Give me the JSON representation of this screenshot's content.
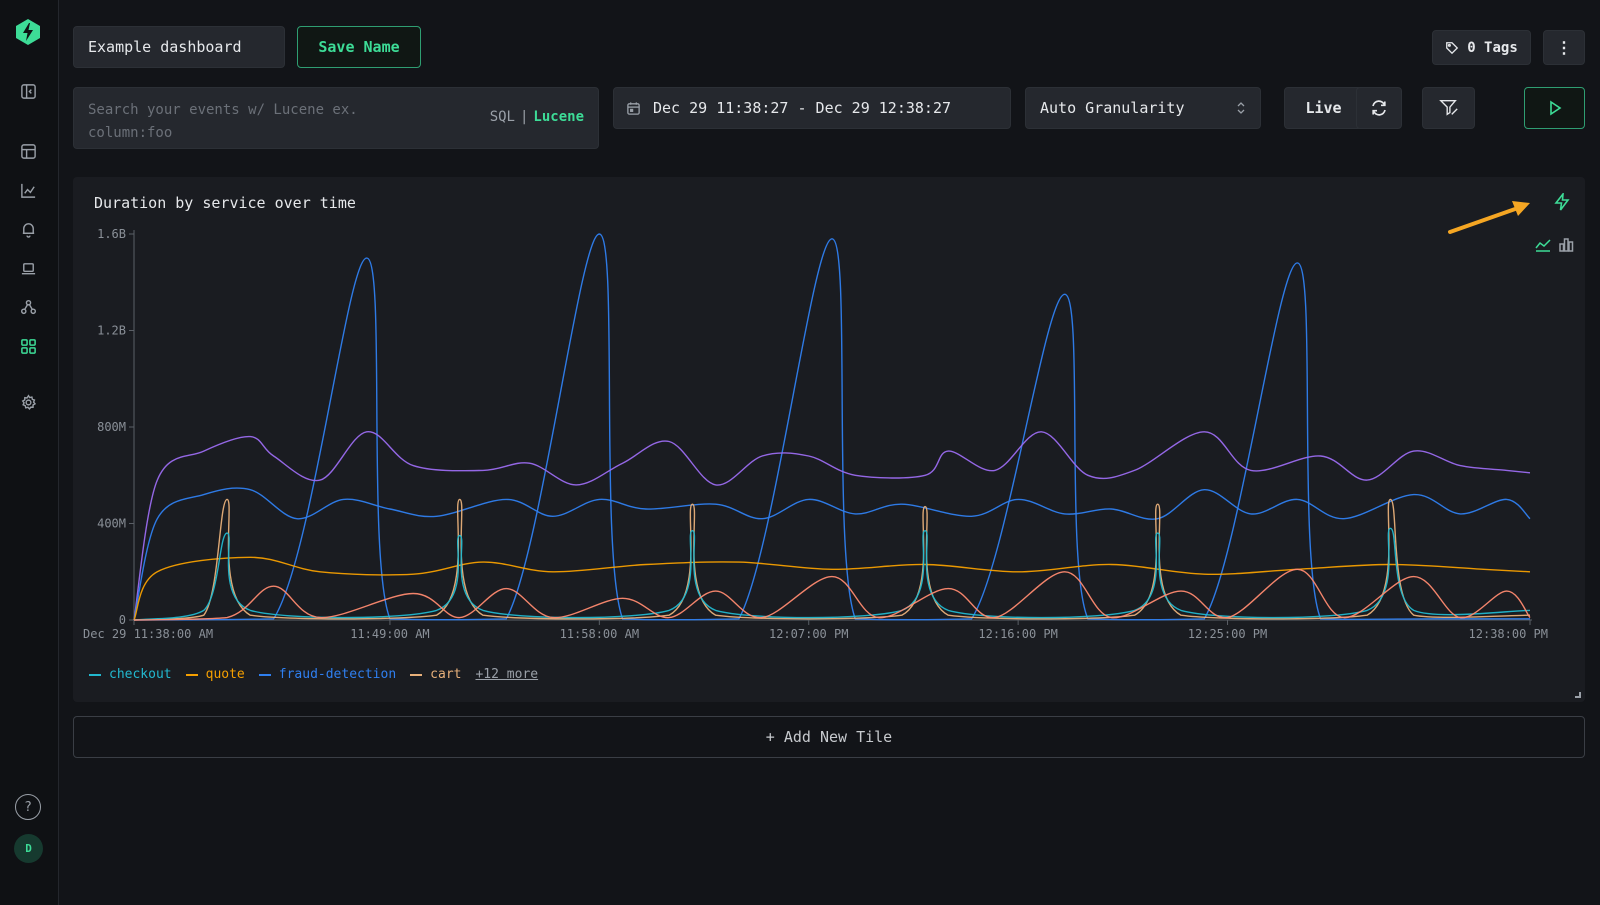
{
  "app": {
    "brand_color": "#3ddc97"
  },
  "sidebar": {
    "items": [
      {
        "icon": "collapse-sidebar-icon"
      },
      {
        "icon": "table-icon"
      },
      {
        "icon": "chart-icon"
      },
      {
        "icon": "bell-icon"
      },
      {
        "icon": "laptop-icon"
      },
      {
        "icon": "services-icon"
      },
      {
        "icon": "dashboard-grid-icon",
        "active": true
      },
      {
        "icon": "gear-icon"
      }
    ],
    "help_label": "?",
    "avatar_initial": "D"
  },
  "header": {
    "dashboard_name": "Example dashboard",
    "save_label": "Save Name",
    "tags_label": "0 Tags",
    "more_label": "⋮"
  },
  "query_bar": {
    "search_placeholder": "Search your events w/ Lucene ex. column:foo",
    "mode_sql": "SQL",
    "mode_sep": "|",
    "mode_lucene": "Lucene",
    "date_range": "Dec 29 11:38:27 - Dec 29 12:38:27",
    "granularity": "Auto Granularity",
    "live_label": "Live"
  },
  "tile": {
    "title": "Duration by service over time",
    "legend": [
      {
        "name": "checkout",
        "color": "#22b8cf"
      },
      {
        "name": "quote",
        "color": "#f59f00"
      },
      {
        "name": "fraud-detection",
        "color": "#2f7ff0"
      },
      {
        "name": "cart",
        "color": "#e8b07a"
      }
    ],
    "legend_more": "+12 more"
  },
  "add_tile_label": "+ Add New Tile",
  "chart_data": {
    "type": "line",
    "title": "Duration by service over time",
    "x": [
      "Dec 29 11:38:00 AM",
      "11:49:00 AM",
      "11:58:00 AM",
      "12:07:00 PM",
      "12:16:00 PM",
      "12:25:00 PM",
      "12:38:00 PM"
    ],
    "y_ticks": [
      "0",
      "400M",
      "800M",
      "1.2B",
      "1.6B"
    ],
    "ylim": [
      0,
      1600000000
    ],
    "xlim_minutes": [
      0,
      60
    ],
    "grid": false,
    "legend_position": "bottom-left",
    "series": [
      {
        "name": "",
        "color": "#2f7ff0",
        "points": [
          [
            0,
            0
          ],
          [
            6,
            5
          ],
          [
            10,
            1500
          ],
          [
            11,
            5
          ],
          [
            16,
            5
          ],
          [
            20,
            1600
          ],
          [
            21,
            5
          ],
          [
            26,
            5
          ],
          [
            30,
            1580
          ],
          [
            31,
            5
          ],
          [
            36,
            5
          ],
          [
            40,
            1350
          ],
          [
            41,
            5
          ],
          [
            46,
            5
          ],
          [
            50,
            1480
          ],
          [
            51,
            5
          ],
          [
            56,
            5
          ],
          [
            60,
            5
          ]
        ]
      },
      {
        "name": "",
        "color": "#9b6cf0",
        "points": [
          [
            0,
            0
          ],
          [
            1,
            580
          ],
          [
            3,
            700
          ],
          [
            5,
            760
          ],
          [
            6,
            680
          ],
          [
            8,
            580
          ],
          [
            10,
            780
          ],
          [
            12,
            640
          ],
          [
            15,
            620
          ],
          [
            17,
            650
          ],
          [
            19,
            560
          ],
          [
            21,
            650
          ],
          [
            23,
            740
          ],
          [
            25,
            560
          ],
          [
            27,
            680
          ],
          [
            29,
            680
          ],
          [
            31,
            600
          ],
          [
            34,
            600
          ],
          [
            35,
            700
          ],
          [
            37,
            620
          ],
          [
            39,
            780
          ],
          [
            41,
            600
          ],
          [
            43,
            620
          ],
          [
            46,
            780
          ],
          [
            48,
            620
          ],
          [
            51,
            680
          ],
          [
            53,
            580
          ],
          [
            55,
            700
          ],
          [
            57,
            640
          ],
          [
            59,
            620
          ],
          [
            60,
            610
          ]
        ]
      },
      {
        "name": "fraud-detection",
        "color": "#2f7ff0",
        "points": [
          [
            0,
            0
          ],
          [
            1,
            420
          ],
          [
            3,
            520
          ],
          [
            5,
            540
          ],
          [
            7,
            420
          ],
          [
            9,
            500
          ],
          [
            11,
            460
          ],
          [
            13,
            430
          ],
          [
            16,
            500
          ],
          [
            18,
            430
          ],
          [
            20,
            500
          ],
          [
            22,
            460
          ],
          [
            25,
            480
          ],
          [
            27,
            420
          ],
          [
            29,
            500
          ],
          [
            31,
            440
          ],
          [
            33,
            480
          ],
          [
            36,
            430
          ],
          [
            38,
            500
          ],
          [
            40,
            440
          ],
          [
            42,
            460
          ],
          [
            44,
            420
          ],
          [
            46,
            540
          ],
          [
            48,
            440
          ],
          [
            50,
            500
          ],
          [
            52,
            420
          ],
          [
            55,
            520
          ],
          [
            57,
            440
          ],
          [
            59,
            500
          ],
          [
            60,
            420
          ]
        ]
      },
      {
        "name": "quote",
        "color": "#f59f00",
        "points": [
          [
            0,
            0
          ],
          [
            1,
            200
          ],
          [
            5,
            260
          ],
          [
            8,
            200
          ],
          [
            12,
            190
          ],
          [
            15,
            240
          ],
          [
            18,
            200
          ],
          [
            22,
            230
          ],
          [
            26,
            240
          ],
          [
            30,
            210
          ],
          [
            34,
            230
          ],
          [
            38,
            200
          ],
          [
            42,
            230
          ],
          [
            46,
            190
          ],
          [
            50,
            210
          ],
          [
            54,
            230
          ],
          [
            58,
            210
          ],
          [
            60,
            200
          ]
        ]
      },
      {
        "name": "cart",
        "color": "#e8b07a",
        "points": [
          [
            0,
            0
          ],
          [
            3,
            20
          ],
          [
            4,
            500
          ],
          [
            5,
            20
          ],
          [
            13,
            20
          ],
          [
            14,
            500
          ],
          [
            15,
            20
          ],
          [
            23,
            20
          ],
          [
            24,
            480
          ],
          [
            25,
            20
          ],
          [
            33,
            20
          ],
          [
            34,
            470
          ],
          [
            35,
            20
          ],
          [
            43,
            20
          ],
          [
            44,
            480
          ],
          [
            45,
            20
          ],
          [
            53,
            20
          ],
          [
            54,
            500
          ],
          [
            55,
            20
          ],
          [
            60,
            20
          ]
        ]
      },
      {
        "name": "checkout",
        "color": "#22b8cf",
        "points": [
          [
            0,
            0
          ],
          [
            3,
            40
          ],
          [
            4,
            360
          ],
          [
            5,
            40
          ],
          [
            13,
            40
          ],
          [
            14,
            350
          ],
          [
            15,
            40
          ],
          [
            23,
            40
          ],
          [
            24,
            370
          ],
          [
            25,
            40
          ],
          [
            33,
            40
          ],
          [
            34,
            370
          ],
          [
            35,
            40
          ],
          [
            43,
            40
          ],
          [
            44,
            360
          ],
          [
            45,
            40
          ],
          [
            53,
            40
          ],
          [
            54,
            380
          ],
          [
            55,
            40
          ],
          [
            60,
            40
          ]
        ]
      },
      {
        "name": "",
        "color": "#ff8a70",
        "points": [
          [
            0,
            0
          ],
          [
            4,
            10
          ],
          [
            6,
            140
          ],
          [
            8,
            10
          ],
          [
            12,
            110
          ],
          [
            14,
            10
          ],
          [
            16,
            130
          ],
          [
            18,
            10
          ],
          [
            21,
            90
          ],
          [
            23,
            10
          ],
          [
            25,
            120
          ],
          [
            27,
            10
          ],
          [
            30,
            180
          ],
          [
            32,
            10
          ],
          [
            35,
            130
          ],
          [
            37,
            10
          ],
          [
            40,
            200
          ],
          [
            42,
            10
          ],
          [
            45,
            120
          ],
          [
            47,
            10
          ],
          [
            50,
            210
          ],
          [
            52,
            10
          ],
          [
            55,
            180
          ],
          [
            57,
            10
          ],
          [
            59,
            120
          ],
          [
            60,
            10
          ]
        ]
      }
    ]
  }
}
